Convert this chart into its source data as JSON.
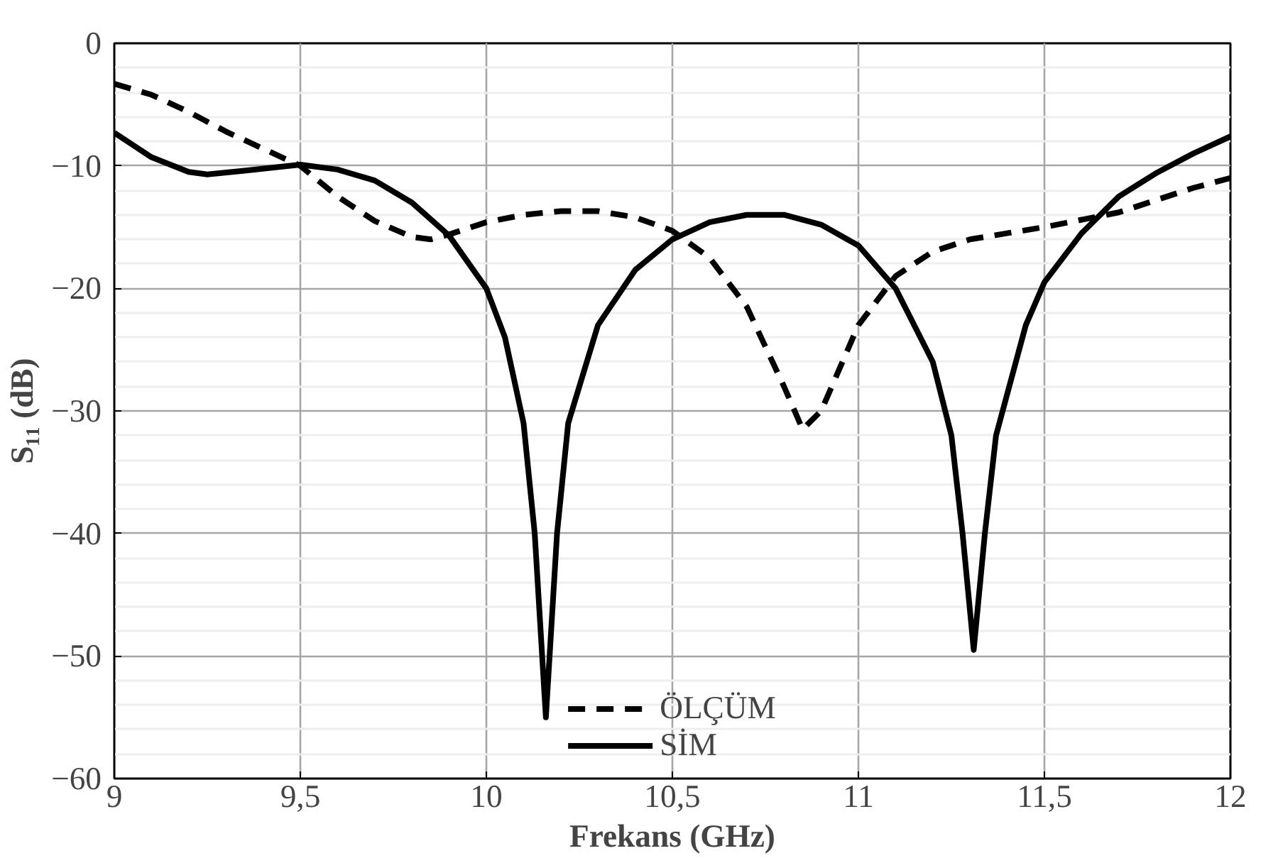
{
  "chart_data": {
    "type": "line",
    "xlabel": "Frekans (GHz)",
    "ylabel": "S₁₁ (dB)",
    "xlim": [
      9,
      12
    ],
    "xticks": [
      9,
      {
        "value": 9.5,
        "label": "9,5"
      },
      10,
      {
        "value": 10.5,
        "label": "10,5"
      },
      11,
      {
        "value": 11.5,
        "label": "11,5"
      },
      12
    ],
    "ylim": [
      -60,
      0
    ],
    "yticks": [
      -60,
      -50,
      -40,
      -30,
      -20,
      -10,
      0
    ],
    "grid": true,
    "legend": "bottom",
    "series": [
      {
        "name": "ÖLÇÜM",
        "color": "#000000",
        "line_style": "dashed",
        "x": [
          9.0,
          9.1,
          9.2,
          9.3,
          9.4,
          9.5,
          9.6,
          9.7,
          9.8,
          9.85,
          9.9,
          10.0,
          10.1,
          10.2,
          10.3,
          10.4,
          10.5,
          10.6,
          10.7,
          10.8,
          10.85,
          10.9,
          11.0,
          11.1,
          11.2,
          11.3,
          11.5,
          11.7,
          11.9,
          12.0
        ],
        "values": [
          -3.3,
          -4.2,
          -5.6,
          -7.2,
          -8.6,
          -10,
          -12.5,
          -14.5,
          -15.8,
          -16,
          -15.6,
          -14.6,
          -14,
          -13.7,
          -13.7,
          -14.2,
          -15.3,
          -17.5,
          -21.5,
          -28,
          -31.5,
          -30,
          -23,
          -19,
          -17,
          -16,
          -15,
          -13.8,
          -11.8,
          -11
        ]
      },
      {
        "name": "SİM",
        "color": "#000000",
        "line_style": "solid",
        "x": [
          9.0,
          9.1,
          9.2,
          9.25,
          9.35,
          9.5,
          9.6,
          9.7,
          9.8,
          9.9,
          10.0,
          10.05,
          10.1,
          10.13,
          10.16,
          10.19,
          10.22,
          10.3,
          10.4,
          10.5,
          10.6,
          10.7,
          10.8,
          10.9,
          11.0,
          11.1,
          11.2,
          11.25,
          11.28,
          11.31,
          11.34,
          11.37,
          11.45,
          11.5,
          11.6,
          11.7,
          11.8,
          11.9,
          12.0
        ],
        "values": [
          -7.3,
          -9.3,
          -10.5,
          -10.7,
          -10.4,
          -9.9,
          -10.3,
          -11.2,
          -13,
          -15.7,
          -20,
          -24,
          -31,
          -40,
          -55,
          -40,
          -31,
          -23,
          -18.5,
          -16,
          -14.6,
          -14,
          -14,
          -14.8,
          -16.5,
          -20,
          -26,
          -32,
          -40,
          -49.5,
          -40,
          -32,
          -23,
          -19.5,
          -15.5,
          -12.5,
          -10.6,
          -9,
          -7.6
        ]
      }
    ]
  }
}
